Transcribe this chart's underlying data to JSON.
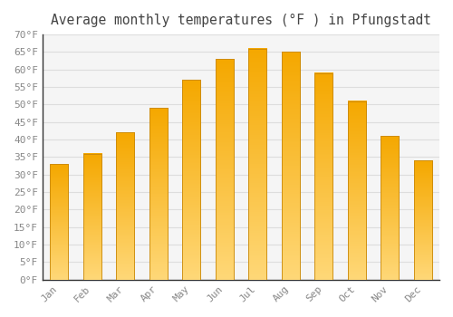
{
  "title": "Average monthly temperatures (°F ) in Pfungstadt",
  "months": [
    "Jan",
    "Feb",
    "Mar",
    "Apr",
    "May",
    "Jun",
    "Jul",
    "Aug",
    "Sep",
    "Oct",
    "Nov",
    "Dec"
  ],
  "values": [
    33,
    36,
    42,
    49,
    57,
    63,
    66,
    65,
    59,
    51,
    41,
    34
  ],
  "bar_color_top": "#F5A800",
  "bar_color_bottom": "#FFD878",
  "bar_edge_color": "#C8880A",
  "background_color": "#FFFFFF",
  "plot_bg_color": "#F5F5F5",
  "grid_color": "#DDDDDD",
  "title_color": "#444444",
  "tick_label_color": "#888888",
  "axis_color": "#333333",
  "ylim_min": 0,
  "ylim_max": 70,
  "ytick_step": 5,
  "title_fontsize": 10.5,
  "tick_fontsize": 8,
  "font_family": "monospace",
  "bar_width": 0.55
}
